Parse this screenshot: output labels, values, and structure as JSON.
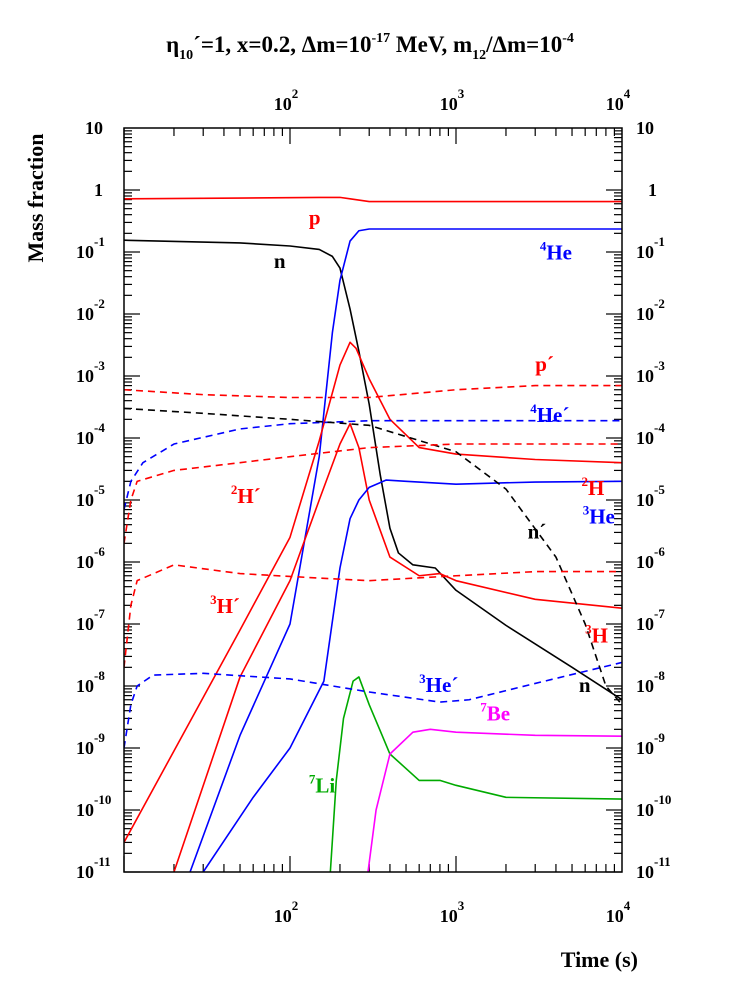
{
  "chart_data": {
    "type": "line",
    "title": {
      "eta": "η",
      "eta_sub": "10",
      "part1": "´=1, x=0.2, Δm=10",
      "exp1": "-17",
      "part2": " MeV, m",
      "sub2": "12",
      "part3": "/Δm=10",
      "exp2": "-4"
    },
    "ylabel": "Mass fraction",
    "xlabel": "Time (s)",
    "x_scale": "log",
    "y_scale": "log",
    "xlim": [
      10,
      10000
    ],
    "ylim": [
      1e-11,
      10
    ],
    "x_ticks": [
      {
        "value": 100,
        "base": "10",
        "exp": "2"
      },
      {
        "value": 1000,
        "base": "10",
        "exp": "3"
      },
      {
        "value": 10000,
        "base": "10",
        "exp": "4"
      }
    ],
    "y_ticks": [
      {
        "value": 10,
        "base": "10",
        "exp": ""
      },
      {
        "value": 1,
        "base": "1",
        "exp": ""
      },
      {
        "value": 0.1,
        "base": "10",
        "exp": "-1"
      },
      {
        "value": 0.01,
        "base": "10",
        "exp": "-2"
      },
      {
        "value": 0.001,
        "base": "10",
        "exp": "-3"
      },
      {
        "value": 0.0001,
        "base": "10",
        "exp": "-4"
      },
      {
        "value": 1e-05,
        "base": "10",
        "exp": "-5"
      },
      {
        "value": 1e-06,
        "base": "10",
        "exp": "-6"
      },
      {
        "value": 1e-07,
        "base": "10",
        "exp": "-7"
      },
      {
        "value": 1e-08,
        "base": "10",
        "exp": "-8"
      },
      {
        "value": 1e-09,
        "base": "10",
        "exp": "-9"
      },
      {
        "value": 1e-10,
        "base": "10",
        "exp": "-10"
      },
      {
        "value": 1e-11,
        "base": "10",
        "exp": "-11"
      }
    ],
    "grid": false,
    "series": [
      {
        "name": "p",
        "color": "#ff0000",
        "style": "solid",
        "points": [
          [
            10,
            0.72
          ],
          [
            50,
            0.74
          ],
          [
            150,
            0.76
          ],
          [
            200,
            0.76
          ],
          [
            230,
            0.72
          ],
          [
            300,
            0.65
          ],
          [
            1000,
            0.65
          ],
          [
            10000,
            0.65
          ]
        ]
      },
      {
        "name": "n",
        "color": "#000000",
        "style": "solid",
        "points": [
          [
            10,
            0.155
          ],
          [
            50,
            0.14
          ],
          [
            100,
            0.125
          ],
          [
            150,
            0.11
          ],
          [
            180,
            0.085
          ],
          [
            200,
            0.055
          ],
          [
            230,
            0.012
          ],
          [
            260,
            0.0025
          ],
          [
            300,
            0.00035
          ],
          [
            350,
            2.5e-05
          ],
          [
            400,
            3.5e-06
          ],
          [
            450,
            1.4e-06
          ],
          [
            550,
            9e-07
          ],
          [
            750,
            8e-07
          ],
          [
            1000,
            3.5e-07
          ],
          [
            2000,
            9.5e-08
          ],
          [
            5000,
            2e-08
          ],
          [
            10000,
            6e-09
          ]
        ]
      },
      {
        "name": "4He",
        "color": "#0000ff",
        "style": "solid",
        "points": [
          [
            25,
            1e-11
          ],
          [
            50,
            1.6e-09
          ],
          [
            100,
            1e-07
          ],
          [
            150,
            5e-05
          ],
          [
            180,
            0.005
          ],
          [
            200,
            0.035
          ],
          [
            230,
            0.15
          ],
          [
            260,
            0.22
          ],
          [
            300,
            0.235
          ],
          [
            1000,
            0.235
          ],
          [
            10000,
            0.235
          ]
        ]
      },
      {
        "name": "2H",
        "color": "#ff0000",
        "style": "solid",
        "points": [
          [
            10,
            3e-11
          ],
          [
            50,
            8e-08
          ],
          [
            100,
            2.5e-06
          ],
          [
            150,
            9e-05
          ],
          [
            200,
            0.0015
          ],
          [
            230,
            0.0035
          ],
          [
            250,
            0.0028
          ],
          [
            300,
            0.0009
          ],
          [
            400,
            0.0002
          ],
          [
            600,
            7e-05
          ],
          [
            1000,
            5.5e-05
          ],
          [
            3000,
            4.5e-05
          ],
          [
            10000,
            4e-05
          ]
        ]
      },
      {
        "name": "3H",
        "color": "#ff0000",
        "style": "solid",
        "points": [
          [
            20,
            1e-11
          ],
          [
            50,
            1.4e-08
          ],
          [
            100,
            5e-07
          ],
          [
            150,
            1e-05
          ],
          [
            200,
            8e-05
          ],
          [
            230,
            0.00017
          ],
          [
            260,
            7e-05
          ],
          [
            300,
            1e-05
          ],
          [
            400,
            1.2e-06
          ],
          [
            600,
            6e-07
          ],
          [
            800,
            6.5e-07
          ],
          [
            1000,
            5e-07
          ],
          [
            3000,
            2.5e-07
          ],
          [
            10000,
            1.8e-07
          ]
        ]
      },
      {
        "name": "3He",
        "color": "#0000ff",
        "style": "solid",
        "points": [
          [
            30,
            1e-11
          ],
          [
            60,
            1.6e-10
          ],
          [
            100,
            1e-09
          ],
          [
            160,
            1.2e-08
          ],
          [
            200,
            8e-07
          ],
          [
            230,
            5e-06
          ],
          [
            260,
            1e-05
          ],
          [
            300,
            1.6e-05
          ],
          [
            380,
            2.1e-05
          ],
          [
            500,
            2e-05
          ],
          [
            1000,
            1.8e-05
          ],
          [
            3000,
            1.95e-05
          ],
          [
            10000,
            2e-05
          ]
        ]
      },
      {
        "name": "7Li",
        "color": "#00aa00",
        "style": "solid",
        "points": [
          [
            175,
            1e-11
          ],
          [
            190,
            3e-10
          ],
          [
            210,
            3e-09
          ],
          [
            240,
            1.2e-08
          ],
          [
            260,
            1.4e-08
          ],
          [
            300,
            5e-09
          ],
          [
            400,
            8e-10
          ],
          [
            600,
            3e-10
          ],
          [
            800,
            3e-10
          ],
          [
            1000,
            2.5e-10
          ],
          [
            2000,
            1.6e-10
          ],
          [
            10000,
            1.5e-10
          ]
        ]
      },
      {
        "name": "7Be",
        "color": "#ff00ff",
        "style": "solid",
        "points": [
          [
            295,
            1e-11
          ],
          [
            330,
            1e-10
          ],
          [
            400,
            8e-10
          ],
          [
            550,
            1.8e-09
          ],
          [
            700,
            2e-09
          ],
          [
            1000,
            1.8e-09
          ],
          [
            3000,
            1.6e-09
          ],
          [
            10000,
            1.55e-09
          ]
        ]
      },
      {
        "name": "p´",
        "color": "#ff0000",
        "style": "dashed",
        "points": [
          [
            10,
            0.0006
          ],
          [
            30,
            0.0005
          ],
          [
            100,
            0.00045
          ],
          [
            300,
            0.00045
          ],
          [
            1000,
            0.0006
          ],
          [
            3000,
            0.0007
          ],
          [
            10000,
            0.0007
          ]
        ]
      },
      {
        "name": "4He´",
        "color": "#0000ff",
        "style": "dashed",
        "points": [
          [
            10,
            7e-06
          ],
          [
            11,
            2e-05
          ],
          [
            13,
            4e-05
          ],
          [
            20,
            8e-05
          ],
          [
            50,
            0.00014
          ],
          [
            100,
            0.00017
          ],
          [
            300,
            0.00019
          ],
          [
            1000,
            0.00019
          ],
          [
            10000,
            0.00019
          ]
        ]
      },
      {
        "name": "n´",
        "color": "#000000",
        "style": "dashed",
        "points": [
          [
            10,
            0.0003
          ],
          [
            30,
            0.00025
          ],
          [
            100,
            0.0002
          ],
          [
            300,
            0.00016
          ],
          [
            1000,
            6e-05
          ],
          [
            2000,
            1.5e-05
          ],
          [
            4000,
            1.2e-06
          ],
          [
            6000,
            1e-07
          ],
          [
            8000,
            1e-08
          ],
          [
            10000,
            5e-09
          ]
        ]
      },
      {
        "name": "2H´",
        "color": "#ff0000",
        "style": "dashed",
        "points": [
          [
            10,
            2e-06
          ],
          [
            11,
            1e-05
          ],
          [
            12,
            2e-05
          ],
          [
            20,
            3e-05
          ],
          [
            50,
            4e-05
          ],
          [
            100,
            5e-05
          ],
          [
            300,
            7e-05
          ],
          [
            1000,
            8e-05
          ],
          [
            10000,
            8e-05
          ]
        ]
      },
      {
        "name": "3H´",
        "color": "#ff0000",
        "style": "dashed",
        "points": [
          [
            10,
            2e-08
          ],
          [
            11,
            2e-07
          ],
          [
            12,
            5e-07
          ],
          [
            20,
            9e-07
          ],
          [
            50,
            6.5e-07
          ],
          [
            150,
            5.5e-07
          ],
          [
            300,
            5e-07
          ],
          [
            1000,
            6e-07
          ],
          [
            3000,
            7e-07
          ],
          [
            10000,
            7e-07
          ]
        ]
      },
      {
        "name": "3He´",
        "color": "#0000ff",
        "style": "dashed",
        "points": [
          [
            10,
            1e-09
          ],
          [
            11,
            5e-09
          ],
          [
            12,
            1e-08
          ],
          [
            15,
            1.5e-08
          ],
          [
            30,
            1.6e-08
          ],
          [
            100,
            1.3e-08
          ],
          [
            300,
            8e-09
          ],
          [
            800,
            5.5e-09
          ],
          [
            1200,
            6e-09
          ],
          [
            3000,
            1.1e-08
          ],
          [
            10000,
            2.4e-08
          ]
        ]
      }
    ],
    "annotations": [
      {
        "text": "p",
        "sup": "",
        "color": "#ff0000",
        "x": 130,
        "y": 0.28
      },
      {
        "text": "n",
        "sup": "",
        "color": "#000000",
        "x": 80,
        "y": 0.055
      },
      {
        "text": "He",
        "sup": "4",
        "color": "#0000ff",
        "x": 3200,
        "y": 0.075
      },
      {
        "text": "p´",
        "sup": "",
        "color": "#ff0000",
        "x": 3000,
        "y": 0.0012
      },
      {
        "text": "He´",
        "sup": "4",
        "color": "#0000ff",
        "x": 2800,
        "y": 0.00018
      },
      {
        "text": "H",
        "sup": "2",
        "color": "#ff0000",
        "x": 5700,
        "y": 1.2e-05
      },
      {
        "text": "H´",
        "sup": "2",
        "color": "#ff0000",
        "x": 44,
        "y": 9e-06
      },
      {
        "text": "He",
        "sup": "3",
        "color": "#0000ff",
        "x": 5800,
        "y": 4.2e-06
      },
      {
        "text": "n´",
        "sup": "",
        "color": "#000000",
        "x": 2700,
        "y": 2.4e-06
      },
      {
        "text": "H´",
        "sup": "3",
        "color": "#ff0000",
        "x": 33,
        "y": 1.5e-07
      },
      {
        "text": "H",
        "sup": "3",
        "color": "#ff0000",
        "x": 6000,
        "y": 5e-08
      },
      {
        "text": "He´",
        "sup": "3",
        "color": "#0000ff",
        "x": 600,
        "y": 8e-09
      },
      {
        "text": "n",
        "sup": "",
        "color": "#000000",
        "x": 5500,
        "y": 8e-09
      },
      {
        "text": "Be",
        "sup": "7",
        "color": "#ff00ff",
        "x": 1400,
        "y": 2.8e-09
      },
      {
        "text": "Li",
        "sup": "7",
        "color": "#00aa00",
        "x": 130,
        "y": 1.9e-10
      }
    ]
  }
}
